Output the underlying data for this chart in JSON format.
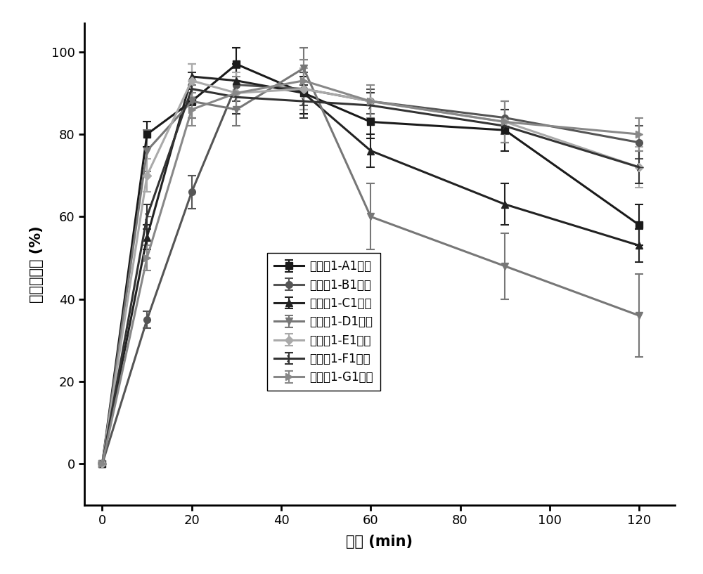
{
  "time_points": [
    0,
    10,
    20,
    30,
    45,
    60,
    90,
    120
  ],
  "series": {
    "A1": {
      "label": "实施例1-A1处方",
      "color": "#1a1a1a",
      "marker": "s",
      "linewidth": 2.2,
      "markersize": 7,
      "values": [
        0,
        80,
        88,
        97,
        90,
        83,
        81,
        58
      ],
      "yerr": [
        0,
        3,
        4,
        4,
        5,
        4,
        5,
        5
      ]
    },
    "B1": {
      "label": "实施例1-B1处方",
      "color": "#555555",
      "marker": "o",
      "linewidth": 2.2,
      "markersize": 7,
      "values": [
        0,
        35,
        66,
        92,
        91,
        88,
        84,
        78
      ],
      "yerr": [
        0,
        2,
        4,
        4,
        4,
        3,
        4,
        4
      ]
    },
    "C1": {
      "label": "实施例1-C1处方",
      "color": "#222222",
      "marker": "^",
      "linewidth": 2.2,
      "markersize": 7,
      "values": [
        0,
        55,
        94,
        93,
        90,
        76,
        63,
        53
      ],
      "yerr": [
        0,
        3,
        3,
        4,
        4,
        4,
        5,
        4
      ]
    },
    "D1": {
      "label": "实施例1-D1处方",
      "color": "#777777",
      "marker": "v",
      "linewidth": 2.2,
      "markersize": 7,
      "values": [
        0,
        76,
        88,
        86,
        96,
        60,
        48,
        36
      ],
      "yerr": [
        0,
        5,
        4,
        4,
        5,
        8,
        8,
        10
      ]
    },
    "E1": {
      "label": "实施例1-E1处方",
      "color": "#aaaaaa",
      "marker": "D",
      "linewidth": 2.2,
      "markersize": 6,
      "values": [
        0,
        70,
        93,
        90,
        91,
        88,
        83,
        72
      ],
      "yerr": [
        0,
        4,
        4,
        5,
        5,
        4,
        5,
        5
      ]
    },
    "F1": {
      "label": "实施例1-F1处方",
      "color": "#333333",
      "marker": "4",
      "linewidth": 2.2,
      "markersize": 9,
      "values": [
        0,
        60,
        91,
        89,
        88,
        87,
        82,
        72
      ],
      "yerr": [
        0,
        3,
        4,
        4,
        4,
        3,
        4,
        4
      ]
    },
    "G1": {
      "label": "实施例1-G1处方",
      "color": "#888888",
      "marker": ">",
      "linewidth": 2.2,
      "markersize": 7,
      "values": [
        0,
        50,
        86,
        90,
        93,
        88,
        83,
        80
      ],
      "yerr": [
        0,
        3,
        4,
        4,
        5,
        4,
        5,
        4
      ]
    }
  },
  "xlabel": "时间 (min)",
  "ylabel": "累积溶出度 (%)",
  "xlim": [
    -4,
    128
  ],
  "ylim": [
    -10,
    107
  ],
  "xticks": [
    0,
    20,
    40,
    60,
    80,
    100,
    120
  ],
  "yticks": [
    0,
    20,
    40,
    60,
    80,
    100
  ],
  "background_color": "#ffffff",
  "axis_fontsize": 15,
  "tick_fontsize": 13,
  "legend_fontsize": 12
}
